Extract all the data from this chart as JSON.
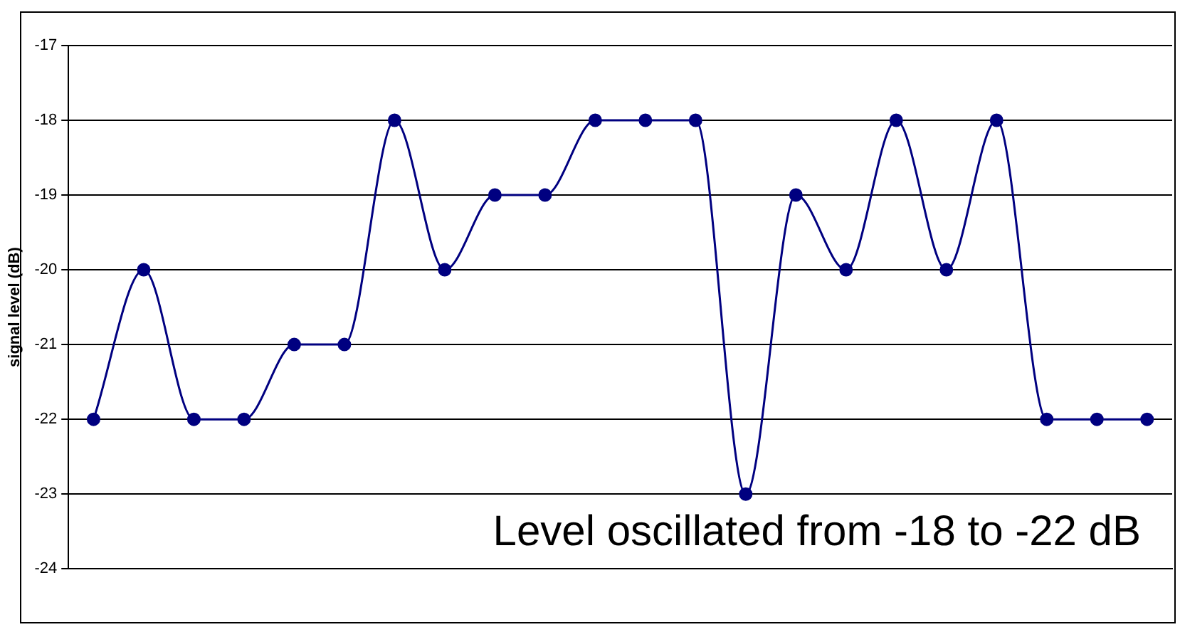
{
  "chart_data": {
    "type": "line",
    "ylabel": "signal level (dB)",
    "categories": [
      null,
      null,
      null,
      null,
      null,
      null,
      null,
      null,
      null,
      null,
      null,
      null,
      null,
      null,
      null,
      null,
      null,
      null,
      null,
      null,
      null,
      null
    ],
    "series": [
      {
        "color": "#000080",
        "values": [
          -22,
          -20,
          -22,
          -22,
          -21,
          -21,
          -18,
          -20,
          -19,
          -19,
          -18,
          -18,
          -18,
          -23,
          -19,
          -20,
          -18,
          -20,
          -18,
          -22,
          -22,
          -22
        ]
      }
    ],
    "ylim": [
      -24,
      -17
    ],
    "yticks": [
      -24,
      -23,
      -22,
      -21,
      -20,
      -19,
      -18,
      -17
    ],
    "grid": "y",
    "legend": false,
    "marker": "circle",
    "line_style": "solid",
    "annotations": [
      "Level oscillated from -18 to -22 dB"
    ]
  }
}
